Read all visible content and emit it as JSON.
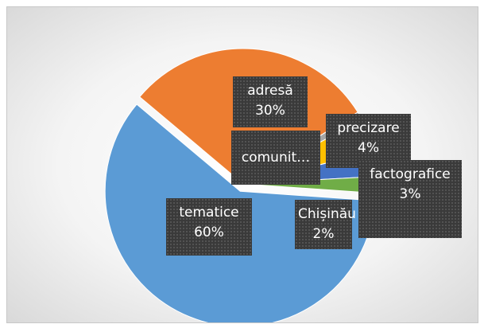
{
  "chart_data": {
    "type": "pie",
    "categories": [
      "tematice",
      "adresă",
      "comunit…",
      "precizare",
      "factografice",
      "Chișinău"
    ],
    "values": [
      60,
      30,
      1,
      4,
      3,
      2
    ],
    "value_labels": [
      "60%",
      "30%",
      null,
      "4%",
      "3%",
      "2%"
    ],
    "colors": [
      "#5b9bd5",
      "#ed7d31",
      "#a5a5a5",
      "#ffc000",
      "#4472c4",
      "#70ad47"
    ]
  }
}
